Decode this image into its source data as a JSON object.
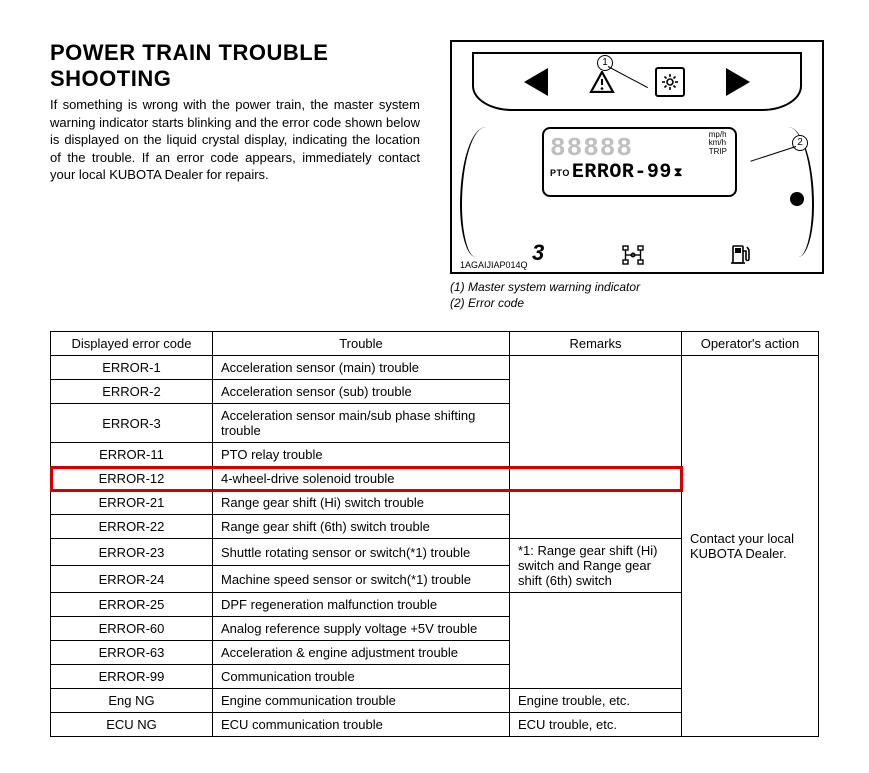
{
  "heading": "POWER TRAIN TROUBLE SHOOTING",
  "intro": "If something is wrong with the power train, the master system warning indicator starts blinking and the error code shown below is displayed on the liquid crystal display, indicating the location of the trouble. If an error code appears, immediately contact your local KUBOTA Dealer for repairs.",
  "diagram": {
    "ref": "1AGAIJIAP014Q",
    "lcd_digits_ghost": "88888",
    "units1": "mp/h",
    "units2": "km/h",
    "units3": "TRIP",
    "pto": "PTO",
    "error_text": "ERROR-99",
    "hourglass": "⧗",
    "three": "3",
    "callout1_num": "1",
    "callout2_num": "2"
  },
  "legend1": "(1) Master system warning indicator",
  "legend2": "(2) Error code",
  "table": {
    "headers": {
      "code": "Displayed error code",
      "trouble": "Trouble",
      "remarks": "Remarks",
      "action": "Operator's action"
    },
    "rows": [
      {
        "code": "ERROR-1",
        "trouble": "Acceleration sensor (main) trouble"
      },
      {
        "code": "ERROR-2",
        "trouble": "Acceleration sensor (sub) trouble"
      },
      {
        "code": "ERROR-3",
        "trouble": "Acceleration sensor main/sub phase shifting trouble"
      },
      {
        "code": "ERROR-11",
        "trouble": "PTO relay trouble"
      },
      {
        "code": "ERROR-12",
        "trouble": "4-wheel-drive solenoid trouble",
        "highlight": true
      },
      {
        "code": "ERROR-21",
        "trouble": "Range gear shift (Hi) switch trouble"
      },
      {
        "code": "ERROR-22",
        "trouble": "Range gear shift (6th) switch trouble"
      },
      {
        "code": "ERROR-23",
        "trouble": "Shuttle rotating sensor or switch(*1) trouble"
      },
      {
        "code": "ERROR-24",
        "trouble": "Machine speed sensor or switch(*1) trouble"
      },
      {
        "code": "ERROR-25",
        "trouble": "DPF regeneration malfunction trouble"
      },
      {
        "code": "ERROR-60",
        "trouble": "Analog reference supply voltage +5V trouble"
      },
      {
        "code": "ERROR-63",
        "trouble": "Acceleration & engine adjustment trouble"
      },
      {
        "code": "ERROR-99",
        "trouble": "Communication trouble"
      },
      {
        "code": "Eng NG",
        "trouble": "Engine communication trouble",
        "remark": "Engine trouble, etc."
      },
      {
        "code": "ECU NG",
        "trouble": "ECU communication trouble",
        "remark": "ECU trouble, etc."
      }
    ],
    "remarks_note": "*1: Range gear shift (Hi) switch and Range gear shift (6th) switch",
    "action_text": "Contact your local KUBOTA Dealer.",
    "highlight_color": "#d10000"
  }
}
